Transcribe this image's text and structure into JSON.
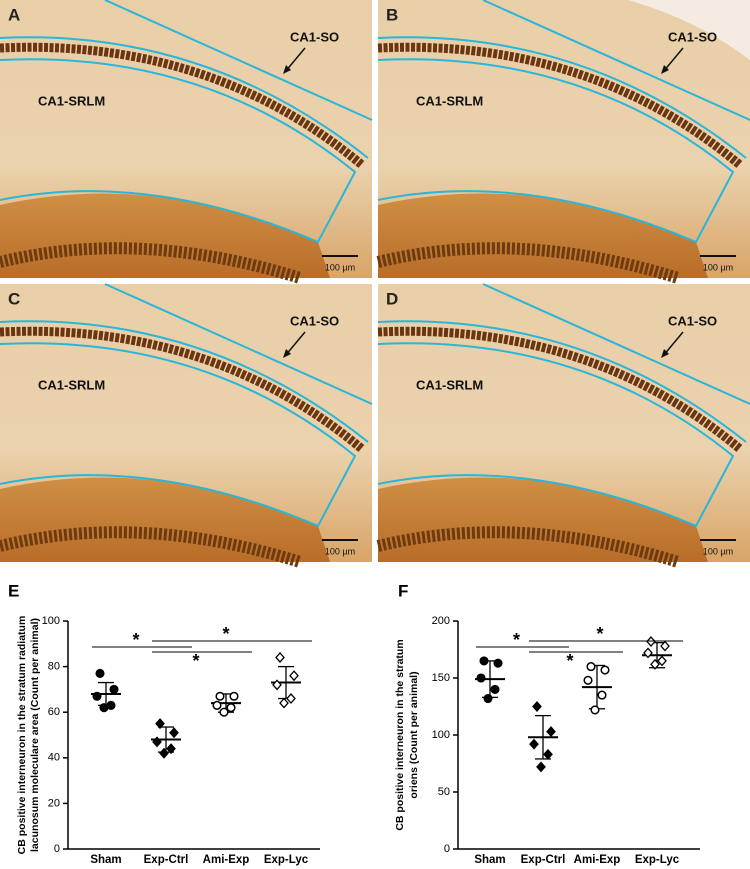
{
  "micrographs": [
    {
      "label": "A",
      "so": "CA1-SO",
      "srlm": "CA1-SRLM",
      "scale_bar": "100 µm"
    },
    {
      "label": "B",
      "so": "CA1-SO",
      "srlm": "CA1-SRLM",
      "scale_bar": "100 µm"
    },
    {
      "label": "C",
      "so": "CA1-SO",
      "srlm": "CA1-SRLM",
      "scale_bar": "100 µm"
    },
    {
      "label": "D",
      "so": "CA1-SO",
      "srlm": "CA1-SRLM",
      "scale_bar": "100 µm"
    }
  ],
  "chart_data": [
    {
      "type": "dot",
      "panel": "E",
      "ylabel": [
        "CB positive interneuron in the stratum radiatum",
        "lacunosum moleculare area (Count per animal)"
      ],
      "categories": [
        "Sham",
        "Exp-Ctrl",
        "Ami-Exp",
        "Exp-Lyc"
      ],
      "points": [
        [
          77,
          70,
          67,
          63,
          62
        ],
        [
          55,
          51,
          47,
          44,
          42
        ],
        [
          67,
          67,
          63,
          62,
          60
        ],
        [
          84,
          76,
          72,
          66,
          64
        ]
      ],
      "means": [
        68,
        48,
        64,
        73
      ],
      "sd": [
        5,
        5.5,
        4,
        7
      ],
      "markers": [
        "circle",
        "diamond",
        "circle",
        "diamond"
      ],
      "fills": [
        "#000000",
        "#000000",
        "#ffffff",
        "#ffffff"
      ],
      "color": "#000000",
      "ylim": [
        0,
        100
      ],
      "yticks": [
        0,
        20,
        40,
        60,
        80,
        100
      ],
      "annotations": [
        "*",
        "*",
        "*"
      ]
    },
    {
      "type": "dot",
      "panel": "F",
      "ylabel": [
        "CB positive interneuron in the stratum",
        "oriens (Count per animal)"
      ],
      "categories": [
        "Sham",
        "Exp-Ctrl",
        "Ami-Exp",
        "Exp-Lyc"
      ],
      "points": [
        [
          165,
          163,
          150,
          140,
          132
        ],
        [
          125,
          103,
          92,
          83,
          72
        ],
        [
          160,
          157,
          148,
          135,
          122
        ],
        [
          182,
          178,
          172,
          165,
          162
        ]
      ],
      "means": [
        149,
        98,
        142,
        170
      ],
      "sd": [
        16,
        19,
        19,
        11
      ],
      "markers": [
        "circle",
        "diamond",
        "circle",
        "diamond"
      ],
      "fills": [
        "#000000",
        "#000000",
        "#ffffff",
        "#ffffff"
      ],
      "color": "#000000",
      "ylim": [
        0,
        200
      ],
      "yticks": [
        0,
        50,
        100,
        150,
        200
      ],
      "annotations": [
        "*",
        "*",
        "*"
      ]
    }
  ]
}
